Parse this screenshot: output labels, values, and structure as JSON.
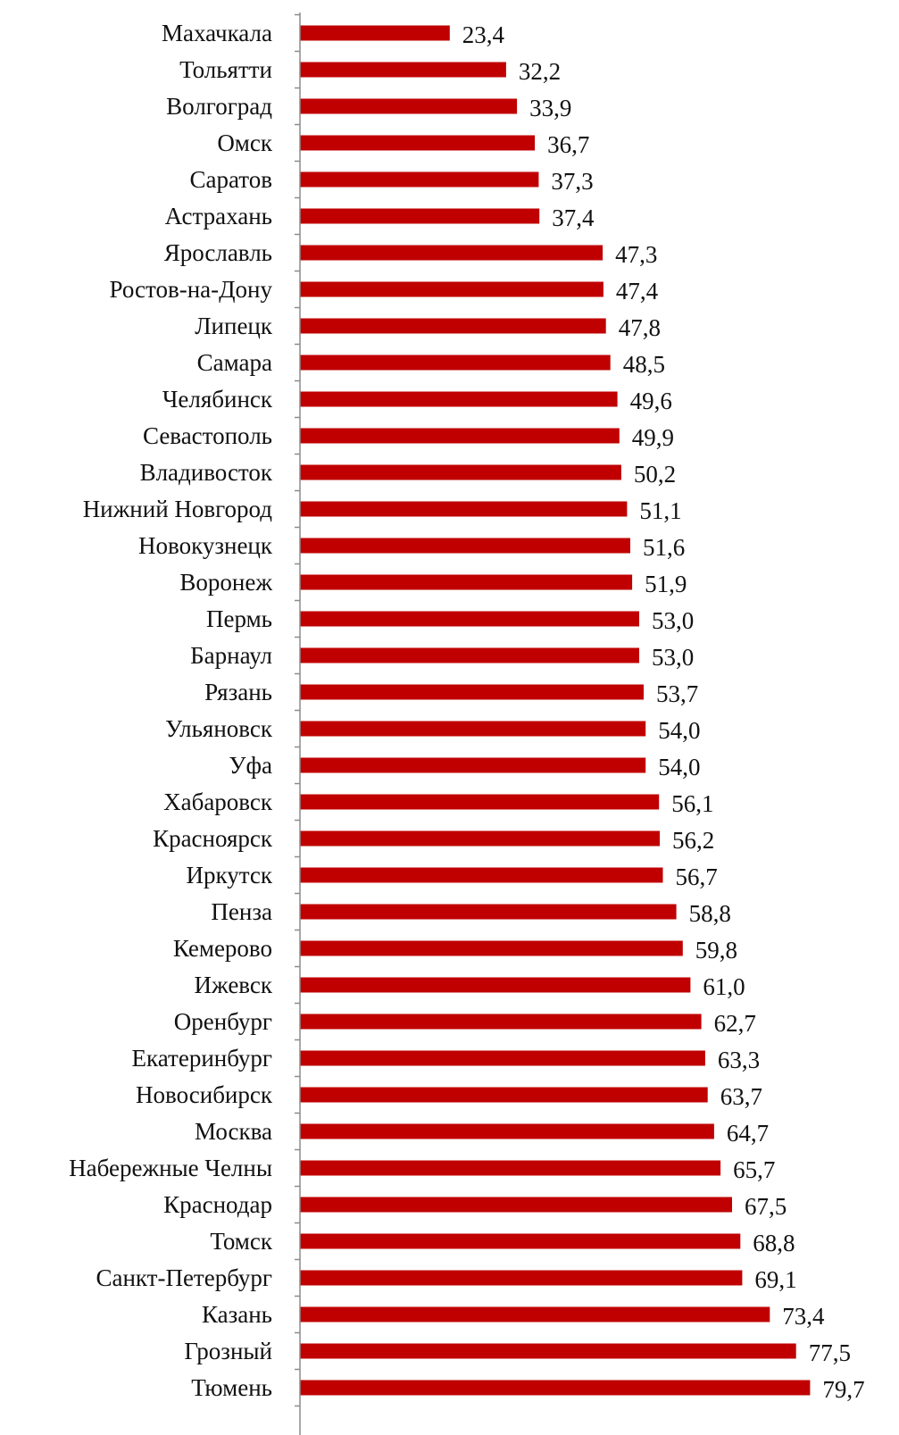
{
  "chart_data": {
    "type": "bar",
    "orientation": "horizontal",
    "categories": [
      "Махачкала",
      "Тольятти",
      "Волгоград",
      "Омск",
      "Саратов",
      "Астрахань",
      "Ярославль",
      "Ростов-на-Дону",
      "Липецк",
      "Самара",
      "Челябинск",
      "Севастополь",
      "Владивосток",
      "Нижний Новгород",
      "Новокузнецк",
      "Воронеж",
      "Пермь",
      "Барнаул",
      "Рязань",
      "Ульяновск",
      "Уфа",
      "Хабаровск",
      "Красноярск",
      "Иркутск",
      "Пенза",
      "Кемерово",
      "Ижевск",
      "Оренбург",
      "Екатеринбург",
      "Новосибирск",
      "Москва",
      "Набережные Челны",
      "Краснодар",
      "Томск",
      "Санкт-Петербург",
      "Казань",
      "Грозный",
      "Тюмень"
    ],
    "values": [
      23.4,
      32.2,
      33.9,
      36.7,
      37.3,
      37.4,
      47.3,
      47.4,
      47.8,
      48.5,
      49.6,
      49.9,
      50.2,
      51.1,
      51.6,
      51.9,
      53.0,
      53.0,
      53.7,
      54.0,
      54.0,
      56.1,
      56.2,
      56.7,
      58.8,
      59.8,
      61.0,
      62.7,
      63.3,
      63.7,
      64.7,
      65.7,
      67.5,
      68.8,
      69.1,
      73.4,
      77.5,
      79.7
    ],
    "value_labels": [
      "23,4",
      "32,2",
      "33,9",
      "36,7",
      "37,3",
      "37,4",
      "47,3",
      "47,4",
      "47,8",
      "48,5",
      "49,6",
      "49,9",
      "50,2",
      "51,1",
      "51,6",
      "51,9",
      "53,0",
      "53,0",
      "53,7",
      "54,0",
      "54,0",
      "56,1",
      "56,2",
      "56,7",
      "58,8",
      "59,8",
      "61,0",
      "62,7",
      "63,3",
      "63,7",
      "64,7",
      "65,7",
      "67,5",
      "68,8",
      "69,1",
      "73,4",
      "77,5",
      "79,7"
    ],
    "title": "",
    "xlabel": "",
    "ylabel": "",
    "xlim": [
      0,
      80
    ],
    "grid": false,
    "legend": "none",
    "bar_color": "#c00000"
  }
}
